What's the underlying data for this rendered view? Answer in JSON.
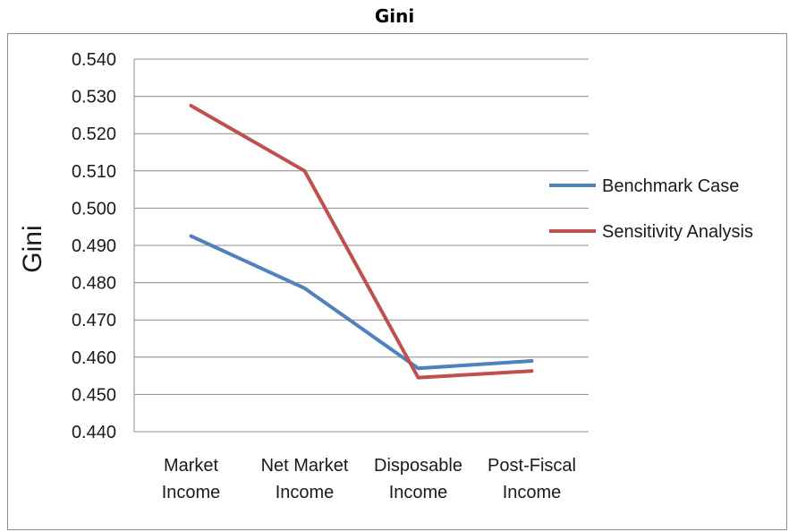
{
  "chart_data": {
    "type": "line",
    "title": "Gini",
    "ylabel": "Gini",
    "xlabel": "",
    "categories": [
      [
        "Market",
        "Income"
      ],
      [
        "Net Market",
        "Income"
      ],
      [
        "Disposable",
        "Income"
      ],
      [
        "Post-Fiscal",
        "Income"
      ]
    ],
    "ylim": [
      0.44,
      0.54
    ],
    "yticks": [
      "0.440",
      "0.450",
      "0.460",
      "0.470",
      "0.480",
      "0.490",
      "0.500",
      "0.510",
      "0.520",
      "0.530",
      "0.540"
    ],
    "grid": true,
    "legend_position": "right",
    "series": [
      {
        "name": "Benchmark Case",
        "color": "#4f81bd",
        "values": [
          0.4925,
          0.4785,
          0.457,
          0.459
        ]
      },
      {
        "name": "Sensitivity Analysis",
        "color": "#c0504d",
        "values": [
          0.5275,
          0.51,
          0.4545,
          0.4563
        ]
      }
    ]
  }
}
